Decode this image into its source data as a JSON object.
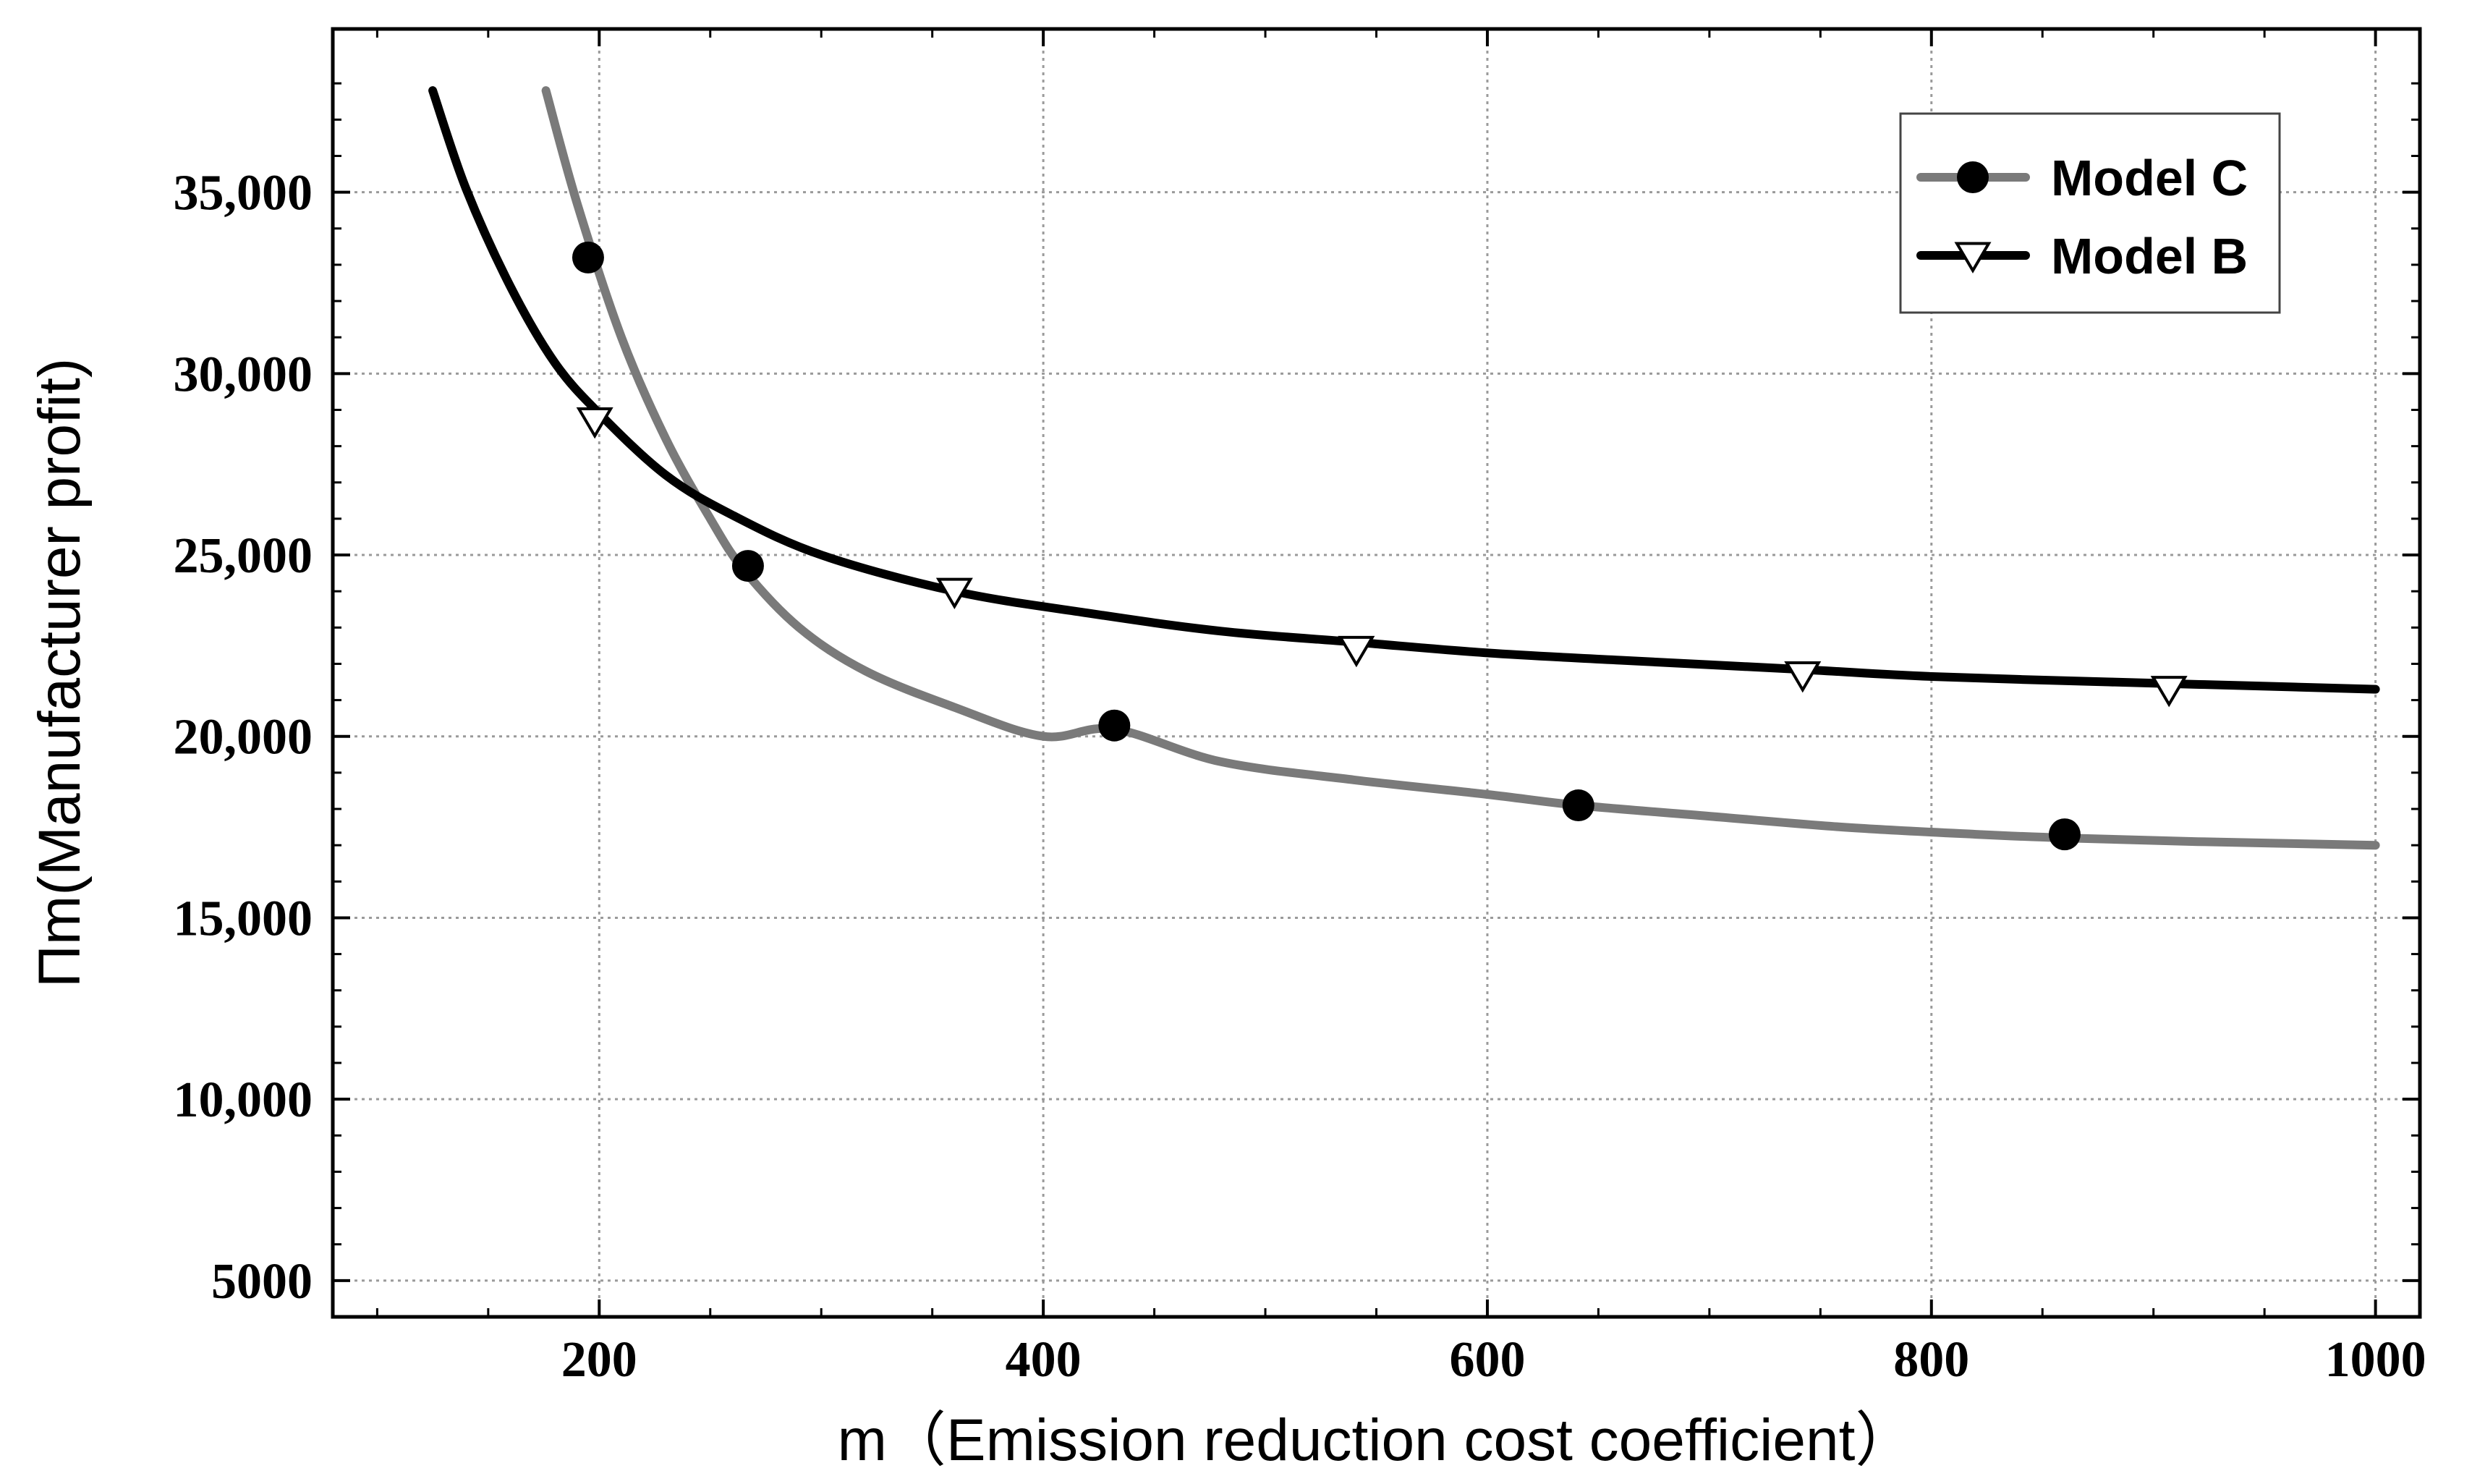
{
  "chart_data": {
    "type": "line",
    "title": "",
    "xlabel": "m（Emission reduction cost coefficient）",
    "ylabel": "Πm(Manufacturer profit)",
    "xlim": [
      80,
      1020
    ],
    "ylim": [
      4000,
      39500
    ],
    "x_ticks": [
      200,
      400,
      600,
      800,
      1000
    ],
    "x_tick_labels": [
      "200",
      "400",
      "600",
      "800",
      "1000"
    ],
    "y_ticks": [
      5000,
      10000,
      15000,
      20000,
      25000,
      30000,
      35000
    ],
    "y_tick_labels": [
      "5000",
      "10,000",
      "15,000",
      "20,000",
      "25,000",
      "30,000",
      "35,000"
    ],
    "x_minor_step": 50,
    "grid": true,
    "legend_position": "top-right",
    "series": [
      {
        "name": "Model C",
        "color": "#7a7a7a",
        "marker": "circle-filled",
        "x": [
          176,
          190,
          210,
          230,
          250,
          265,
          290,
          320,
          360,
          400,
          432,
          480,
          540,
          600,
          641,
          700,
          760,
          820,
          860,
          920,
          1000
        ],
        "y": [
          37800,
          34700,
          31000,
          28200,
          26000,
          24600,
          23000,
          21800,
          20800,
          20000,
          20200,
          19300,
          18800,
          18400,
          18100,
          17800,
          17500,
          17300,
          17200,
          17100,
          17000
        ],
        "marker_x": [
          195,
          267,
          432,
          641,
          860
        ],
        "marker_y": [
          33200,
          24700,
          20300,
          18100,
          17300
        ]
      },
      {
        "name": "Model B",
        "color": "#000000",
        "marker": "triangle-down-open",
        "x": [
          125,
          140,
          160,
          180,
          200,
          230,
          260,
          300,
          360,
          420,
          480,
          540,
          600,
          660,
          740,
          800,
          880,
          940,
          1000
        ],
        "y": [
          37800,
          35100,
          32400,
          30300,
          28900,
          27200,
          26100,
          25000,
          24000,
          23400,
          22900,
          22600,
          22300,
          22100,
          21850,
          21650,
          21500,
          21400,
          21300
        ],
        "marker_x": [
          198,
          360,
          541,
          742,
          907
        ],
        "marker_y": [
          28700,
          24000,
          22400,
          21700,
          21300
        ]
      }
    ]
  }
}
